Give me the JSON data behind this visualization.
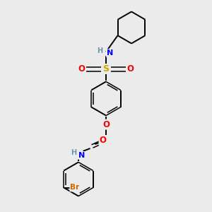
{
  "background_color": "#ebebeb",
  "bond_color": "#000000",
  "atom_colors": {
    "N": "#0000ff",
    "H": "#6699aa",
    "S": "#ccaa00",
    "O": "#ff0000",
    "Br": "#cc6600",
    "C": "#000000"
  },
  "figsize": [
    3.0,
    3.0
  ],
  "dpi": 100,
  "xlim": [
    0,
    10
  ],
  "ylim": [
    0,
    10
  ]
}
